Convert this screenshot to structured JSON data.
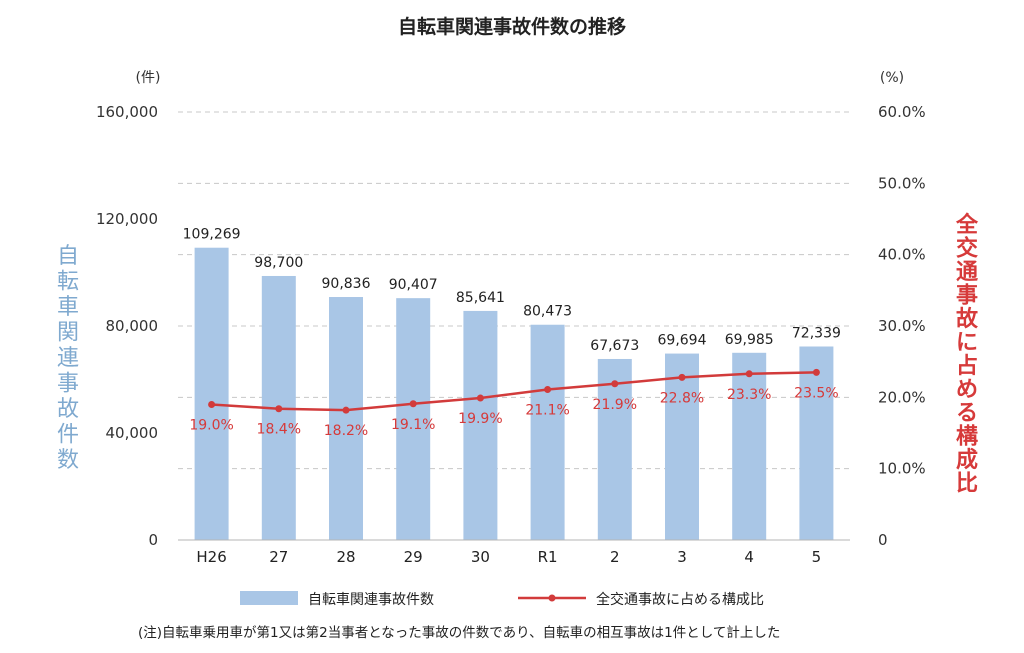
{
  "chart_data": {
    "type": "bar",
    "title": "自転車関連事故件数の推移",
    "categories": [
      "H26",
      "27",
      "28",
      "29",
      "30",
      "R1",
      "2",
      "3",
      "4",
      "5"
    ],
    "series": [
      {
        "name": "自転車関連事故件数",
        "type": "bar",
        "axis": "left",
        "values": [
          109269,
          98700,
          90836,
          90407,
          85641,
          80473,
          67673,
          69694,
          69985,
          72339
        ],
        "labels": [
          "109,269",
          "98,700",
          "90,836",
          "90,407",
          "85,641",
          "80,473",
          "67,673",
          "69,694",
          "69,985",
          "72,339"
        ],
        "color": "#a9c6e6"
      },
      {
        "name": "全交通事故に占める構成比",
        "type": "line",
        "axis": "right",
        "values": [
          19.0,
          18.4,
          18.2,
          19.1,
          19.9,
          21.1,
          21.9,
          22.8,
          23.3,
          23.5
        ],
        "labels": [
          "19.0%",
          "18.4%",
          "18.2%",
          "19.1%",
          "19.9%",
          "21.1%",
          "21.9%",
          "22.8%",
          "23.3%",
          "23.5%"
        ],
        "color": "#d23b3b"
      }
    ],
    "y_left": {
      "unit": "(件)",
      "label": "自転車関連事故件数",
      "ylim": [
        0,
        160000
      ],
      "ticks": [
        0,
        40000,
        80000,
        120000,
        160000
      ],
      "tick_labels": [
        "0",
        "40,000",
        "80,000",
        "120,000",
        "160,000"
      ]
    },
    "y_right": {
      "unit": "(%)",
      "label": "全交通事故に占める構成比",
      "ylim": [
        0,
        60
      ],
      "ticks": [
        0,
        10,
        20,
        30,
        40,
        50,
        60
      ],
      "tick_labels": [
        "0",
        "10.0%",
        "20.0%",
        "30.0%",
        "40.0%",
        "50.0%",
        "60.0%"
      ]
    },
    "grid": "dashed-horizontal",
    "legend_position": "bottom",
    "note": "(注)自転車乗用車が第1又は第2当事者となった事故の件数であり、自転車の相互事故は1件として計上した"
  }
}
